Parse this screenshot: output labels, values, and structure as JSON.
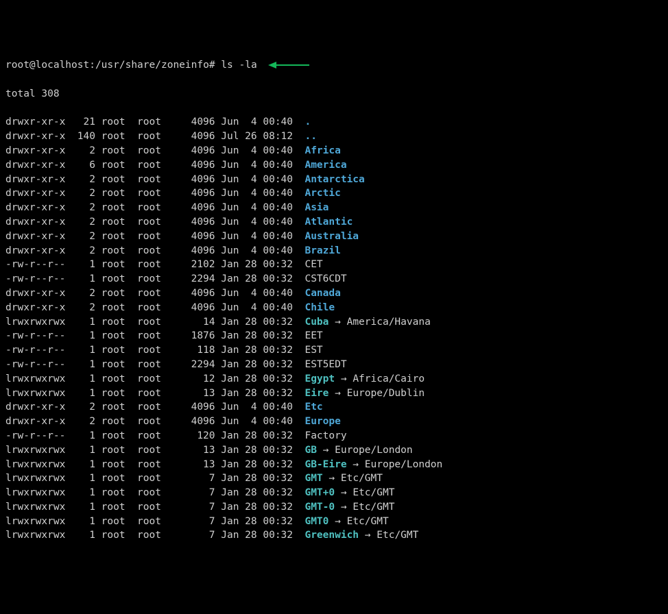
{
  "colors": {
    "background": "#000000",
    "foreground": "#d0d0d0",
    "directory": "#4fa8d8",
    "symlink": "#4fc1c1",
    "arrow": "#14b85a"
  },
  "prompt": {
    "user_host": "root@localhost",
    "path": "/usr/share/zoneinfo",
    "separator": ":",
    "suffix": "#",
    "command": "ls -la"
  },
  "total_line": "total 308",
  "entries": [
    {
      "perms": "drwxr-xr-x",
      "links": "21",
      "owner": "root",
      "group": "root",
      "size": "4096",
      "date": "Jun  4 00:40",
      "name": ".",
      "type": "dir",
      "target": ""
    },
    {
      "perms": "drwxr-xr-x",
      "links": "140",
      "owner": "root",
      "group": "root",
      "size": "4096",
      "date": "Jul 26 08:12",
      "name": "..",
      "type": "dir",
      "target": ""
    },
    {
      "perms": "drwxr-xr-x",
      "links": "2",
      "owner": "root",
      "group": "root",
      "size": "4096",
      "date": "Jun  4 00:40",
      "name": "Africa",
      "type": "dir",
      "target": ""
    },
    {
      "perms": "drwxr-xr-x",
      "links": "6",
      "owner": "root",
      "group": "root",
      "size": "4096",
      "date": "Jun  4 00:40",
      "name": "America",
      "type": "dir",
      "target": ""
    },
    {
      "perms": "drwxr-xr-x",
      "links": "2",
      "owner": "root",
      "group": "root",
      "size": "4096",
      "date": "Jun  4 00:40",
      "name": "Antarctica",
      "type": "dir",
      "target": ""
    },
    {
      "perms": "drwxr-xr-x",
      "links": "2",
      "owner": "root",
      "group": "root",
      "size": "4096",
      "date": "Jun  4 00:40",
      "name": "Arctic",
      "type": "dir",
      "target": ""
    },
    {
      "perms": "drwxr-xr-x",
      "links": "2",
      "owner": "root",
      "group": "root",
      "size": "4096",
      "date": "Jun  4 00:40",
      "name": "Asia",
      "type": "dir",
      "target": ""
    },
    {
      "perms": "drwxr-xr-x",
      "links": "2",
      "owner": "root",
      "group": "root",
      "size": "4096",
      "date": "Jun  4 00:40",
      "name": "Atlantic",
      "type": "dir",
      "target": ""
    },
    {
      "perms": "drwxr-xr-x",
      "links": "2",
      "owner": "root",
      "group": "root",
      "size": "4096",
      "date": "Jun  4 00:40",
      "name": "Australia",
      "type": "dir",
      "target": ""
    },
    {
      "perms": "drwxr-xr-x",
      "links": "2",
      "owner": "root",
      "group": "root",
      "size": "4096",
      "date": "Jun  4 00:40",
      "name": "Brazil",
      "type": "dir",
      "target": ""
    },
    {
      "perms": "-rw-r--r--",
      "links": "1",
      "owner": "root",
      "group": "root",
      "size": "2102",
      "date": "Jan 28 00:32",
      "name": "CET",
      "type": "file",
      "target": ""
    },
    {
      "perms": "-rw-r--r--",
      "links": "1",
      "owner": "root",
      "group": "root",
      "size": "2294",
      "date": "Jan 28 00:32",
      "name": "CST6CDT",
      "type": "file",
      "target": ""
    },
    {
      "perms": "drwxr-xr-x",
      "links": "2",
      "owner": "root",
      "group": "root",
      "size": "4096",
      "date": "Jun  4 00:40",
      "name": "Canada",
      "type": "dir",
      "target": ""
    },
    {
      "perms": "drwxr-xr-x",
      "links": "2",
      "owner": "root",
      "group": "root",
      "size": "4096",
      "date": "Jun  4 00:40",
      "name": "Chile",
      "type": "dir",
      "target": ""
    },
    {
      "perms": "lrwxrwxrwx",
      "links": "1",
      "owner": "root",
      "group": "root",
      "size": "14",
      "date": "Jan 28 00:32",
      "name": "Cuba",
      "type": "link",
      "target": "America/Havana"
    },
    {
      "perms": "-rw-r--r--",
      "links": "1",
      "owner": "root",
      "group": "root",
      "size": "1876",
      "date": "Jan 28 00:32",
      "name": "EET",
      "type": "file",
      "target": ""
    },
    {
      "perms": "-rw-r--r--",
      "links": "1",
      "owner": "root",
      "group": "root",
      "size": "118",
      "date": "Jan 28 00:32",
      "name": "EST",
      "type": "file",
      "target": ""
    },
    {
      "perms": "-rw-r--r--",
      "links": "1",
      "owner": "root",
      "group": "root",
      "size": "2294",
      "date": "Jan 28 00:32",
      "name": "EST5EDT",
      "type": "file",
      "target": ""
    },
    {
      "perms": "lrwxrwxrwx",
      "links": "1",
      "owner": "root",
      "group": "root",
      "size": "12",
      "date": "Jan 28 00:32",
      "name": "Egypt",
      "type": "link",
      "target": "Africa/Cairo"
    },
    {
      "perms": "lrwxrwxrwx",
      "links": "1",
      "owner": "root",
      "group": "root",
      "size": "13",
      "date": "Jan 28 00:32",
      "name": "Eire",
      "type": "link",
      "target": "Europe/Dublin"
    },
    {
      "perms": "drwxr-xr-x",
      "links": "2",
      "owner": "root",
      "group": "root",
      "size": "4096",
      "date": "Jun  4 00:40",
      "name": "Etc",
      "type": "dir",
      "target": ""
    },
    {
      "perms": "drwxr-xr-x",
      "links": "2",
      "owner": "root",
      "group": "root",
      "size": "4096",
      "date": "Jun  4 00:40",
      "name": "Europe",
      "type": "dir",
      "target": ""
    },
    {
      "perms": "-rw-r--r--",
      "links": "1",
      "owner": "root",
      "group": "root",
      "size": "120",
      "date": "Jan 28 00:32",
      "name": "Factory",
      "type": "file",
      "target": ""
    },
    {
      "perms": "lrwxrwxrwx",
      "links": "1",
      "owner": "root",
      "group": "root",
      "size": "13",
      "date": "Jan 28 00:32",
      "name": "GB",
      "type": "link",
      "target": "Europe/London"
    },
    {
      "perms": "lrwxrwxrwx",
      "links": "1",
      "owner": "root",
      "group": "root",
      "size": "13",
      "date": "Jan 28 00:32",
      "name": "GB-Eire",
      "type": "link",
      "target": "Europe/London"
    },
    {
      "perms": "lrwxrwxrwx",
      "links": "1",
      "owner": "root",
      "group": "root",
      "size": "7",
      "date": "Jan 28 00:32",
      "name": "GMT",
      "type": "link",
      "target": "Etc/GMT"
    },
    {
      "perms": "lrwxrwxrwx",
      "links": "1",
      "owner": "root",
      "group": "root",
      "size": "7",
      "date": "Jan 28 00:32",
      "name": "GMT+0",
      "type": "link",
      "target": "Etc/GMT"
    },
    {
      "perms": "lrwxrwxrwx",
      "links": "1",
      "owner": "root",
      "group": "root",
      "size": "7",
      "date": "Jan 28 00:32",
      "name": "GMT-0",
      "type": "link",
      "target": "Etc/GMT"
    },
    {
      "perms": "lrwxrwxrwx",
      "links": "1",
      "owner": "root",
      "group": "root",
      "size": "7",
      "date": "Jan 28 00:32",
      "name": "GMT0",
      "type": "link",
      "target": "Etc/GMT"
    },
    {
      "perms": "lrwxrwxrwx",
      "links": "1",
      "owner": "root",
      "group": "root",
      "size": "7",
      "date": "Jan 28 00:32",
      "name": "Greenwich",
      "type": "link",
      "target": "Etc/GMT"
    }
  ],
  "link_arrow": " → "
}
